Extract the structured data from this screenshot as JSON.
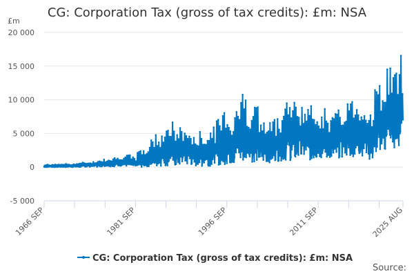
{
  "chart_data": {
    "type": "line",
    "title": "CG: Corporation Tax (gross of tax credits): £m: NSA",
    "ylabel": "£m",
    "xlabel": "",
    "ylim": [
      -5000,
      20000
    ],
    "yticks": [
      -5000,
      0,
      5000,
      10000,
      15000,
      20000
    ],
    "ytick_labels": [
      "-5 000",
      "0",
      "5 000",
      "10 000",
      "15 000",
      "20 000"
    ],
    "xrange": [
      "1966 SEP",
      "2025 AUG"
    ],
    "xtick_labels": [
      "1966 SEP",
      "1981 SEP",
      "1996 SEP",
      "2011 SEP",
      "2025 AUG"
    ],
    "grid": true,
    "legend_position": "bottom",
    "source_label": "Source:",
    "color": "#0077c0",
    "frequency": "monthly",
    "series": [
      {
        "name": "CG: Corporation Tax (gross of tax credits): £m: NSA",
        "years": [
          1966,
          1967,
          1968,
          1969,
          1970,
          1971,
          1972,
          1973,
          1974,
          1975,
          1976,
          1977,
          1978,
          1979,
          1980,
          1981,
          1982,
          1983,
          1984,
          1985,
          1986,
          1987,
          1988,
          1989,
          1990,
          1991,
          1992,
          1993,
          1994,
          1995,
          1996,
          1997,
          1998,
          1999,
          2000,
          2001,
          2002,
          2003,
          2004,
          2005,
          2006,
          2007,
          2008,
          2009,
          2010,
          2011,
          2012,
          2013,
          2014,
          2015,
          2016,
          2017,
          2018,
          2019,
          2020,
          2021,
          2022,
          2023,
          2024,
          2025
        ],
        "annual_high_estimate": [
          300,
          400,
          400,
          500,
          500,
          500,
          600,
          700,
          800,
          900,
          1200,
          1400,
          1500,
          1700,
          1800,
          1500,
          2500,
          2800,
          4500,
          5000,
          6000,
          6800,
          5800,
          6000,
          5700,
          4500,
          5300,
          5000,
          6000,
          7300,
          9200,
          7300,
          10300,
          11400,
          9600,
          9700,
          7100,
          6600,
          7500,
          8300,
          10800,
          10000,
          10200,
          9500,
          9100,
          9400,
          8800,
          7900,
          8200,
          8500,
          10100,
          10400,
          10200,
          9700,
          9000,
          12400,
          13000,
          15900,
          14900,
          16900
        ],
        "annual_low_estimate": [
          0,
          0,
          0,
          0,
          0,
          0,
          0,
          50,
          50,
          50,
          100,
          100,
          100,
          150,
          150,
          0,
          0,
          100,
          100,
          100,
          200,
          200,
          200,
          300,
          300,
          100,
          100,
          200,
          300,
          300,
          400,
          500,
          600,
          700,
          700,
          800,
          700,
          700,
          800,
          900,
          1000,
          1000,
          1000,
          900,
          1000,
          1100,
          1200,
          1200,
          1300,
          1400,
          1500,
          1600,
          1700,
          1800,
          900,
          2000,
          2200,
          2400,
          2500,
          3000
        ]
      }
    ]
  }
}
